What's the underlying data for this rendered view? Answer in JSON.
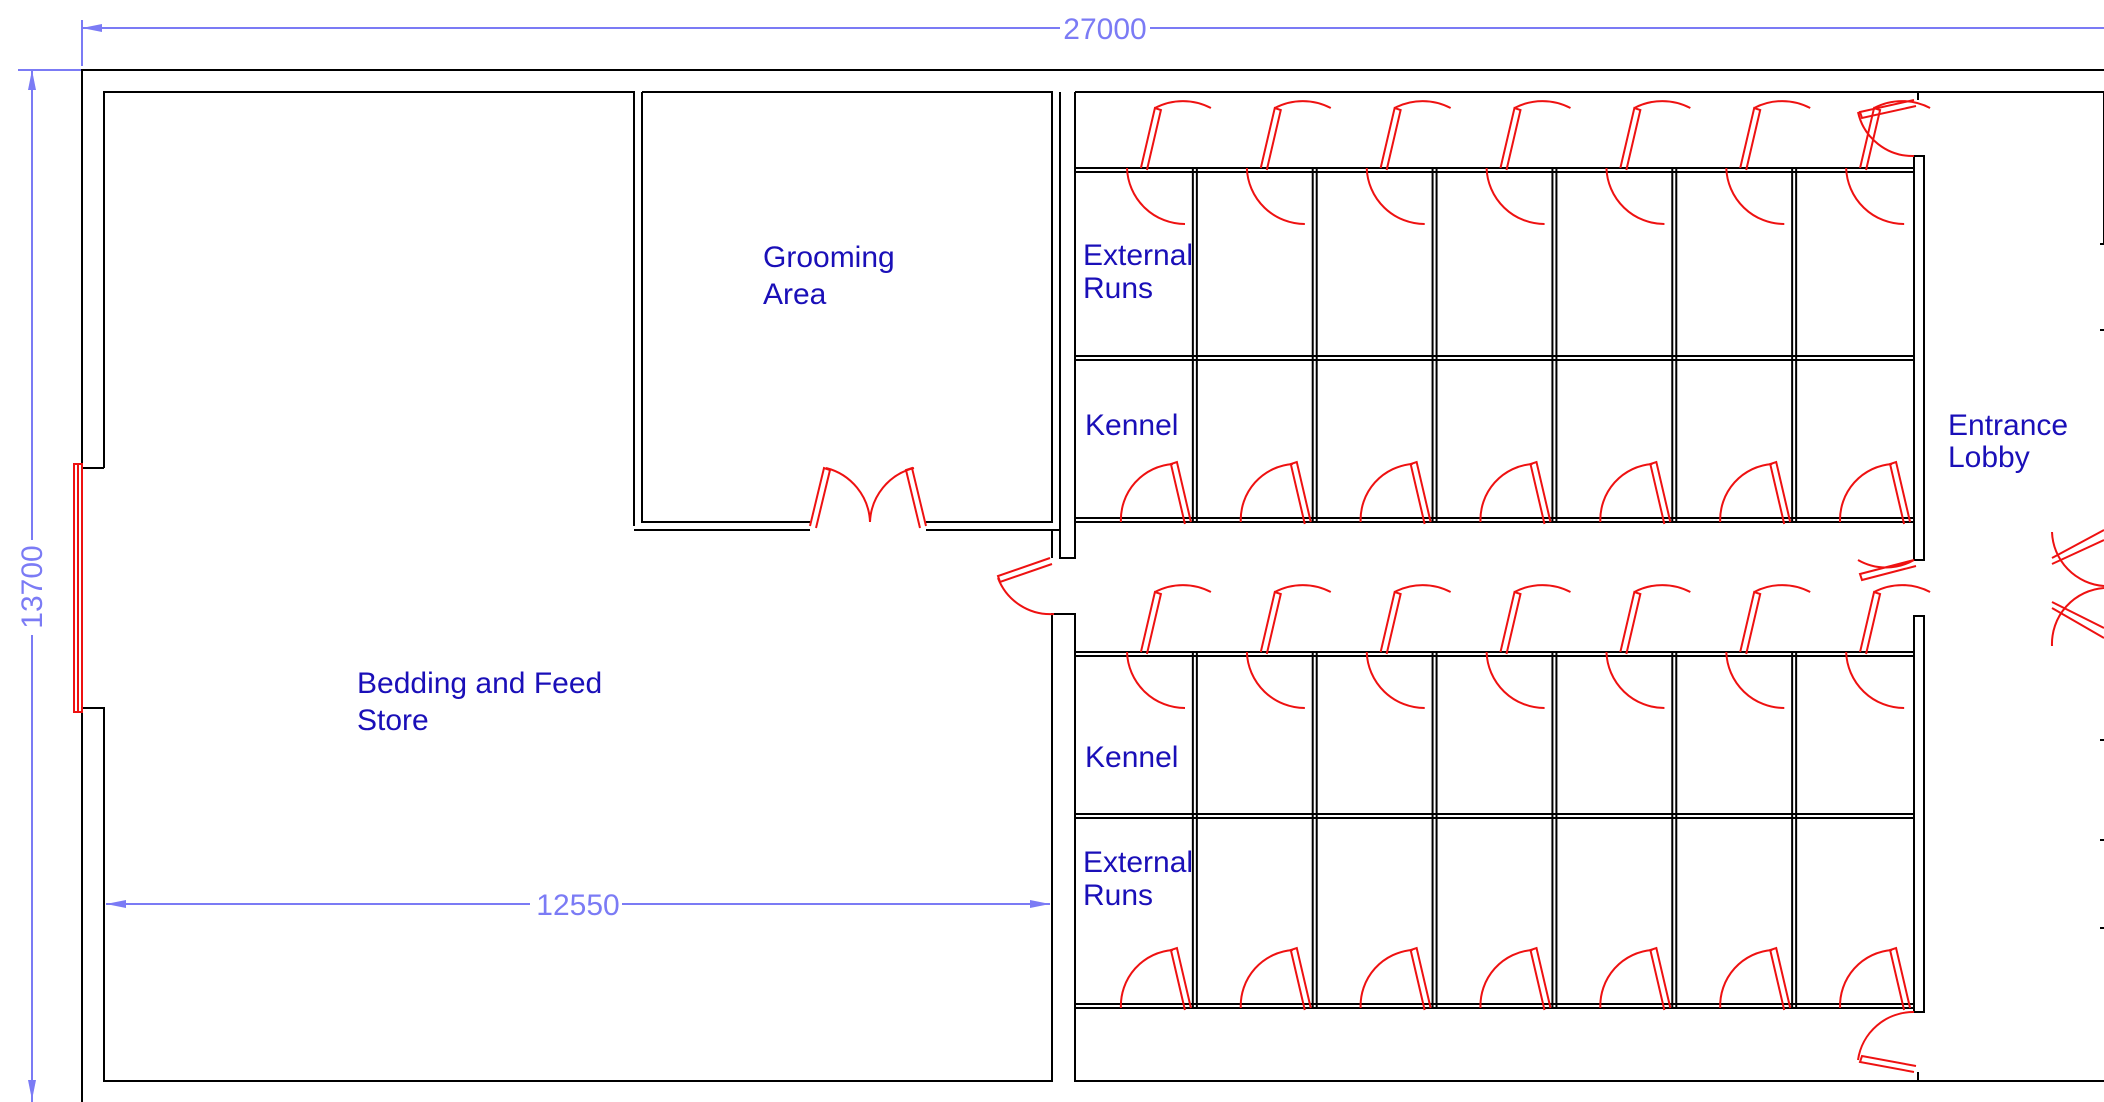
{
  "dimensions": {
    "overall_width": "27000",
    "overall_height": "13700",
    "store_width": "12550"
  },
  "rooms": {
    "grooming": [
      "Grooming",
      "Area"
    ],
    "store": [
      "Bedding and Feed",
      "Store"
    ],
    "lobby": [
      "Entrance",
      "Lobby"
    ],
    "kennel_top": "Kennel",
    "kennel_bottom": "Kennel",
    "runs_top": [
      "External",
      "Runs"
    ],
    "runs_bottom": [
      "External",
      "Runs"
    ]
  },
  "layout": {
    "kennel_rows": 2,
    "cells_per_row": 7
  },
  "colors": {
    "walls": "#000000",
    "doors": "#ee1111",
    "dimensions": "#7b7bf5",
    "labels": "#1a0fb8"
  }
}
